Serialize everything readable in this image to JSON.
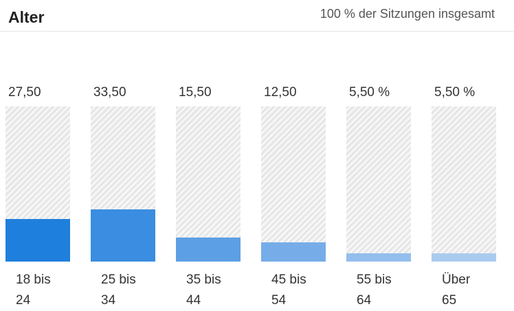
{
  "chart_data": {
    "type": "bar",
    "title": "Alter",
    "subtitle": "100 % der Sitzungen insgesamt",
    "categories": [
      "18 bis 24",
      "25 bis 34",
      "35 bis 44",
      "45 bis 54",
      "55 bis 64",
      "Über 65"
    ],
    "values": [
      27.5,
      33.5,
      15.5,
      12.5,
      5.5,
      5.5
    ],
    "value_labels": [
      "27,50 %",
      "33,50 %",
      "15,50 %",
      "12,50 %",
      "5,50 %",
      "5,50 %"
    ],
    "colors": [
      "#1f7fdc",
      "#3a8de0",
      "#5d9fe5",
      "#76ade9",
      "#93beed",
      "#aacbef"
    ],
    "ylim": [
      0,
      100
    ]
  }
}
